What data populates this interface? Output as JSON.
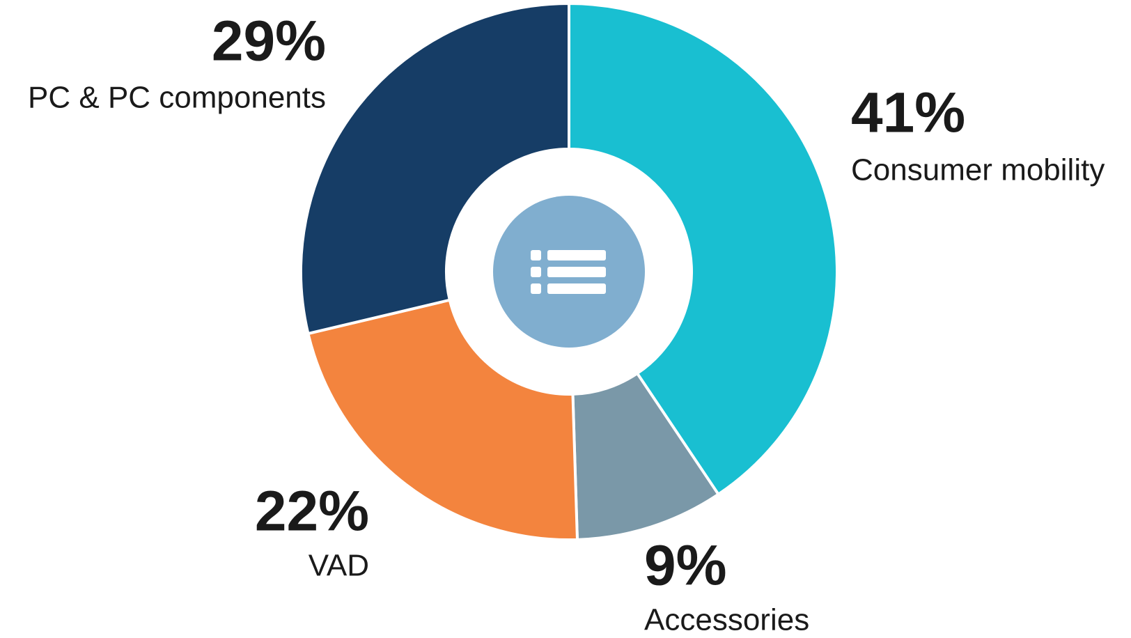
{
  "chart_data": {
    "type": "donut",
    "categories": [
      "Consumer mobility",
      "Accessories",
      "VAD",
      "PC & PC components"
    ],
    "values": [
      41,
      9,
      22,
      29
    ],
    "value_labels": [
      "41%",
      "9%",
      "22%",
      "29%"
    ],
    "colors": [
      "#19bfd1",
      "#7a98a8",
      "#f3843e",
      "#163d66"
    ]
  }
}
